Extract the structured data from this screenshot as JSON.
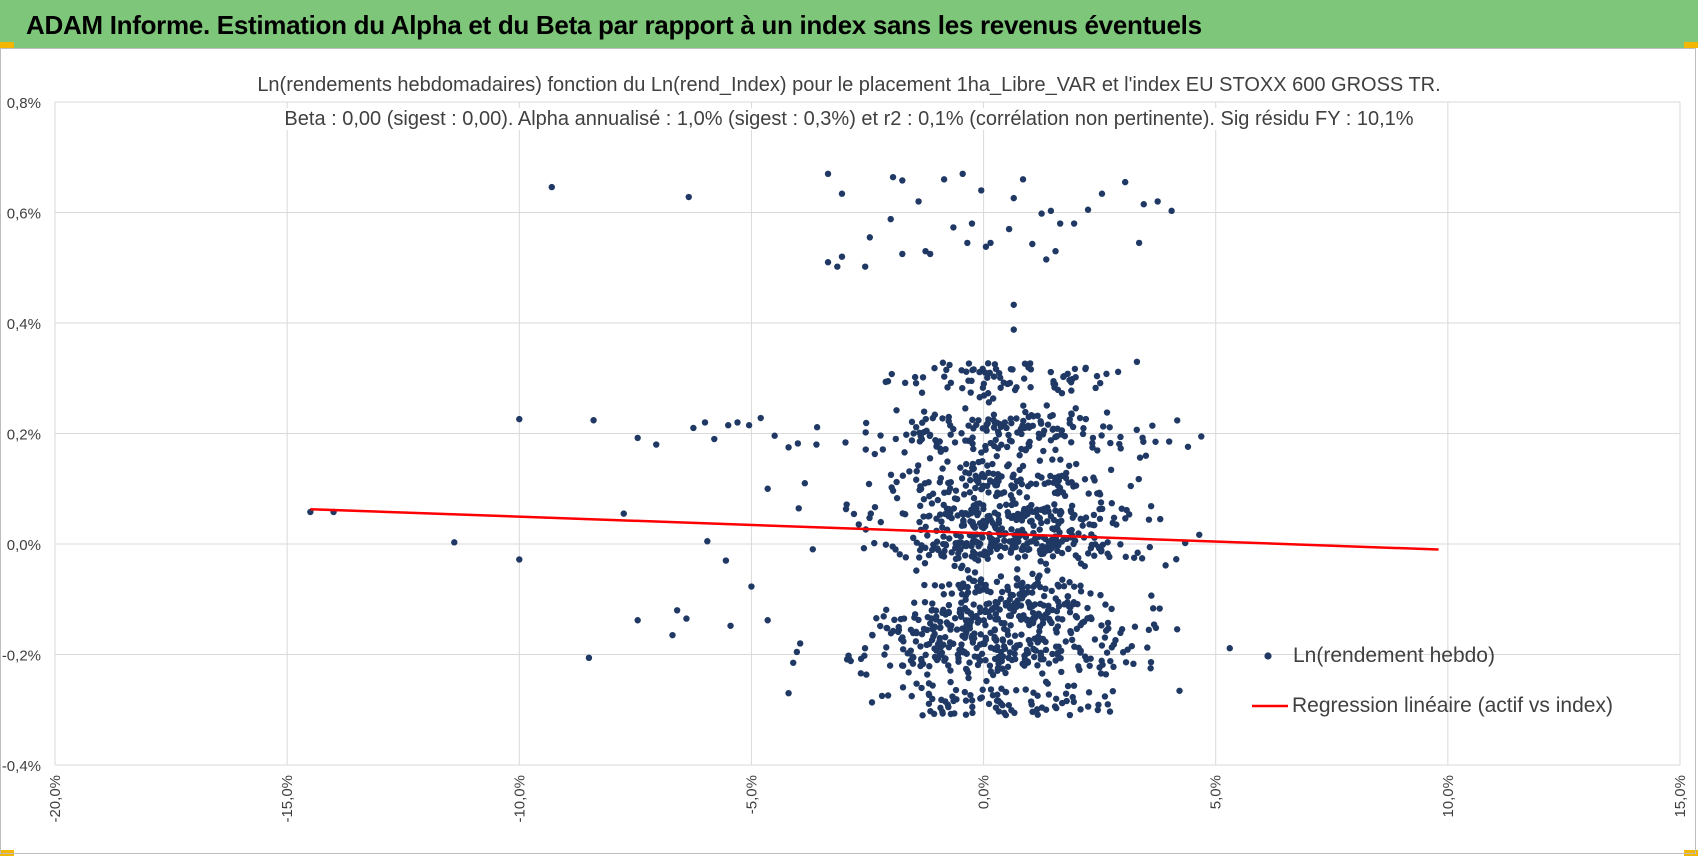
{
  "banner": {
    "title": "ADAM Informe. Estimation du Alpha et du Beta par rapport à un index sans les revenus éventuels",
    "color": "#7ec77a",
    "corner_color": "#f2b705"
  },
  "chart_data": {
    "type": "scatter",
    "title": "Ln(rendements hebdomadaires) fonction du Ln(rend_Index) pour le placement 1ha_Libre_VAR et l'index EU STOXX 600 GROSS TR.",
    "subtitle": "Beta : 0,00 (sigest : 0,00). Alpha annualisé : 1,0% (sigest : 0,3%) et r2 : 0,1% (corrélation non pertinente). Sig résidu FY : 10,1%",
    "xlabel": "",
    "ylabel": "",
    "xlim": [
      -0.2,
      0.15
    ],
    "ylim": [
      -0.004,
      0.008
    ],
    "x_ticks": [
      -0.2,
      -0.15,
      -0.1,
      -0.05,
      0.0,
      0.05,
      0.1,
      0.15
    ],
    "x_tick_labels": [
      "-20,0%",
      "-15,0%",
      "-10,0%",
      "-5,0%",
      "0,0%",
      "5,0%",
      "10,0%",
      "15,0%"
    ],
    "y_ticks": [
      -0.004,
      -0.002,
      0.0,
      0.002,
      0.004,
      0.006,
      0.008
    ],
    "y_tick_labels": [
      "-0,4%",
      "-0,2%",
      "0,0%",
      "0,2%",
      "0,4%",
      "0,6%",
      "0,8%"
    ],
    "grid": true,
    "legend_position": "right",
    "series": [
      {
        "name": "Ln(rendement hebdo)",
        "kind": "points",
        "color": "#1f3864",
        "points": [
          [
            -0.145,
            0.00058
          ],
          [
            -0.14,
            0.00058
          ],
          [
            -0.114,
            3e-05
          ],
          [
            -0.1,
            -0.00028
          ],
          [
            -0.1,
            0.00226
          ],
          [
            -0.093,
            0.00646
          ],
          [
            -0.084,
            0.00224
          ],
          [
            -0.085,
            -0.00206
          ],
          [
            -0.0635,
            0.00628
          ],
          [
            -0.0745,
            0.00192
          ],
          [
            -0.0705,
            0.0018
          ],
          [
            -0.0625,
            0.0021
          ],
          [
            -0.06,
            0.0022
          ],
          [
            -0.058,
            0.0019
          ],
          [
            -0.055,
            0.00215
          ],
          [
            -0.053,
            0.0022
          ],
          [
            -0.0505,
            0.00215
          ],
          [
            -0.048,
            0.00228
          ],
          [
            -0.045,
            0.00196
          ],
          [
            -0.042,
            0.00175
          ],
          [
            -0.04,
            0.00182
          ],
          [
            -0.036,
            0.0018
          ],
          [
            -0.0775,
            0.00055
          ],
          [
            -0.0595,
            5e-05
          ],
          [
            -0.0555,
            -0.0003
          ],
          [
            -0.05,
            -0.00077
          ],
          [
            -0.0465,
            0.001
          ],
          [
            -0.0385,
            0.0011
          ],
          [
            -0.0745,
            -0.00138
          ],
          [
            -0.066,
            -0.0012
          ],
          [
            -0.064,
            -0.00135
          ],
          [
            -0.067,
            -0.00165
          ],
          [
            -0.0545,
            -0.00148
          ],
          [
            -0.0465,
            -0.00138
          ],
          [
            -0.041,
            -0.00215
          ],
          [
            -0.0395,
            -0.0018
          ],
          [
            -0.042,
            -0.0027
          ],
          [
            -0.0335,
            0.0067
          ],
          [
            -0.0305,
            0.00634
          ],
          [
            -0.0335,
            0.0051
          ],
          [
            -0.0315,
            0.00502
          ],
          [
            -0.0255,
            0.00502
          ],
          [
            -0.0305,
            0.0052
          ],
          [
            -0.0245,
            0.00555
          ],
          [
            -0.02,
            0.00588
          ],
          [
            -0.0195,
            0.00664
          ],
          [
            -0.0175,
            0.00658
          ],
          [
            -0.014,
            0.0062
          ],
          [
            -0.0115,
            0.00525
          ],
          [
            -0.0085,
            0.0066
          ],
          [
            -0.0065,
            0.00573
          ],
          [
            -0.0035,
            0.00545
          ],
          [
            -0.0025,
            0.0058
          ],
          [
            -0.0005,
            0.0064
          ],
          [
            0.0005,
            0.00538
          ],
          [
            0.0055,
            0.0057
          ],
          [
            0.0065,
            0.00626
          ],
          [
            0.0105,
            0.00543
          ],
          [
            0.0125,
            0.00598
          ],
          [
            0.0145,
            0.00603
          ],
          [
            0.0165,
            0.0058
          ],
          [
            0.0195,
            0.0058
          ],
          [
            0.0225,
            0.00605
          ],
          [
            0.0255,
            0.00634
          ],
          [
            0.0305,
            0.00655
          ],
          [
            0.0335,
            0.00545
          ],
          [
            0.0345,
            0.00615
          ],
          [
            0.0375,
            0.0062
          ],
          [
            0.0405,
            0.00603
          ],
          [
            0.0085,
            0.0066
          ],
          [
            -0.0045,
            0.0067
          ],
          [
            0.0135,
            0.00515
          ],
          [
            -0.0175,
            0.00525
          ],
          [
            -0.0125,
            0.0053
          ],
          [
            0.0015,
            0.00545
          ],
          [
            0.0155,
            0.0053
          ],
          [
            0.0065,
            0.00433
          ],
          [
            0.0065,
            0.00388
          ]
        ]
      },
      {
        "name": "Regression linéaire (actif vs index)",
        "kind": "line",
        "color": "#ff0000",
        "points": [
          [
            -0.145,
            0.00063
          ],
          [
            0.098,
            -0.0001
          ]
        ]
      }
    ]
  },
  "legend": {
    "items": [
      {
        "label": "Ln(rendement hebdo)",
        "marker": "dot"
      },
      {
        "label": "Regression linéaire (actif vs index)",
        "marker": "line"
      }
    ]
  }
}
